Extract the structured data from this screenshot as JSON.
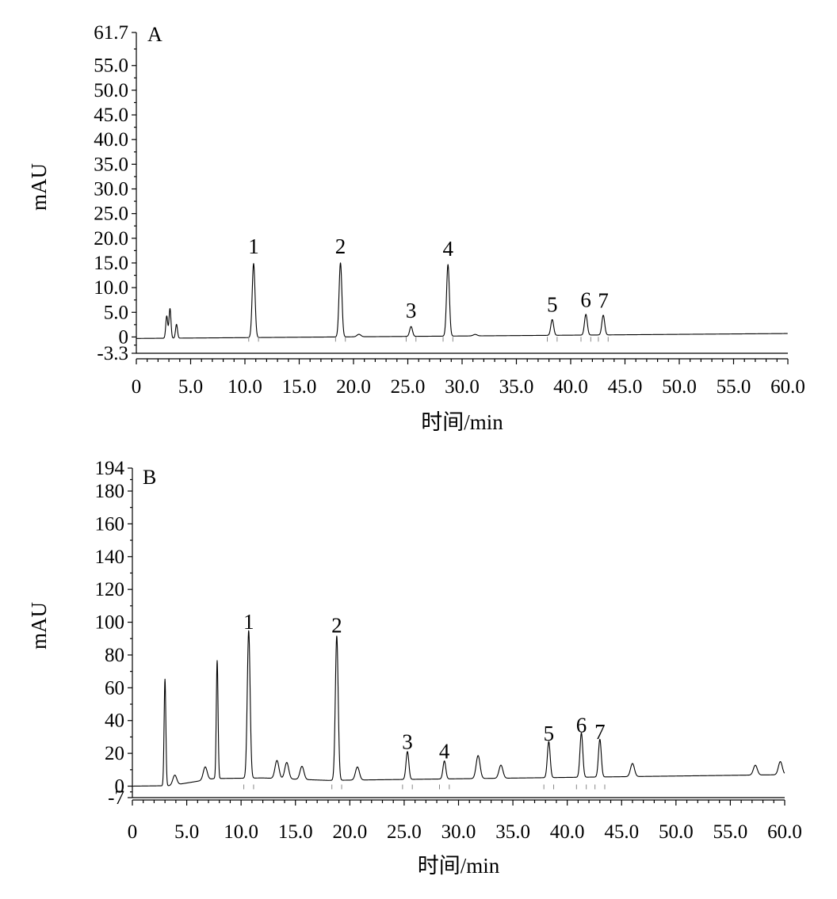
{
  "chart_data": [
    {
      "type": "line",
      "panel_label": "A",
      "ylabel": "mAU",
      "xlabel": "时间/min",
      "xlim": [
        0,
        60
      ],
      "ylim": [
        -3.3,
        61.7
      ],
      "x_ticks": [
        "0",
        "5.0",
        "10.0",
        "15.0",
        "20.0",
        "25.0",
        "30.0",
        "35.0",
        "40.0",
        "45.0",
        "50.0",
        "55.0",
        "60.0"
      ],
      "y_ticks": [
        "-3.3",
        "0",
        "5.0",
        "10.0",
        "15.0",
        "20.0",
        "25.0",
        "30.0",
        "35.0",
        "40.0",
        "45.0",
        "50.0",
        "55.0",
        "61.7"
      ],
      "grid": false,
      "baseline": {
        "start": -0.3,
        "end": 0.7
      },
      "solvent_front": [
        {
          "t": 2.8,
          "h": 4.5
        },
        {
          "t": 3.1,
          "h": 6.0
        },
        {
          "t": 3.7,
          "h": 2.8
        }
      ],
      "peaks": [
        {
          "label": "1",
          "t": 10.8,
          "h": 15.0
        },
        {
          "label": "2",
          "t": 18.8,
          "h": 15.0
        },
        {
          "label": "3",
          "t": 25.3,
          "h": 2.0
        },
        {
          "label": "4",
          "t": 28.7,
          "h": 14.5
        },
        {
          "label": "5",
          "t": 38.3,
          "h": 3.2
        },
        {
          "label": "6",
          "t": 41.4,
          "h": 4.2
        },
        {
          "label": "7",
          "t": 43.0,
          "h": 4.0
        }
      ],
      "minor_peaks": [
        {
          "t": 20.5,
          "h": 0.5
        },
        {
          "t": 31.2,
          "h": 0.3
        }
      ]
    },
    {
      "type": "line",
      "panel_label": "B",
      "ylabel": "mAU",
      "xlabel": "时间/min",
      "xlim": [
        0,
        60
      ],
      "ylim": [
        -7,
        194
      ],
      "x_ticks": [
        "0",
        "5.0",
        "10.0",
        "15.0",
        "20.0",
        "25.0",
        "30.0",
        "35.0",
        "40.0",
        "45.0",
        "50.0",
        "55.0",
        "60.0"
      ],
      "y_ticks": [
        "-7",
        "0",
        "20",
        "40",
        "60",
        "80",
        "100",
        "120",
        "140",
        "160",
        "180",
        "194"
      ],
      "grid": false,
      "baseline": {
        "start": 0,
        "end": 5
      },
      "peaks": [
        {
          "label": "1",
          "t": 10.7,
          "h": 90
        },
        {
          "label": "2",
          "t": 18.8,
          "h": 88
        },
        {
          "label": "3",
          "t": 25.3,
          "h": 17
        },
        {
          "label": "4",
          "t": 28.7,
          "h": 11
        },
        {
          "label": "5",
          "t": 38.3,
          "h": 22
        },
        {
          "label": "6",
          "t": 41.3,
          "h": 27
        },
        {
          "label": "7",
          "t": 43.0,
          "h": 23
        }
      ],
      "minor_peaks": [
        {
          "t": 3.0,
          "h": 65
        },
        {
          "t": 3.9,
          "h": 6
        },
        {
          "t": 6.7,
          "h": 8
        },
        {
          "t": 7.8,
          "h": 72
        },
        {
          "t": 13.3,
          "h": 11
        },
        {
          "t": 14.2,
          "h": 10
        },
        {
          "t": 15.6,
          "h": 8
        },
        {
          "t": 20.7,
          "h": 8
        },
        {
          "t": 31.8,
          "h": 14
        },
        {
          "t": 33.9,
          "h": 8
        },
        {
          "t": 46.0,
          "h": 8
        },
        {
          "t": 57.3,
          "h": 6
        },
        {
          "t": 59.6,
          "h": 8
        }
      ]
    }
  ]
}
